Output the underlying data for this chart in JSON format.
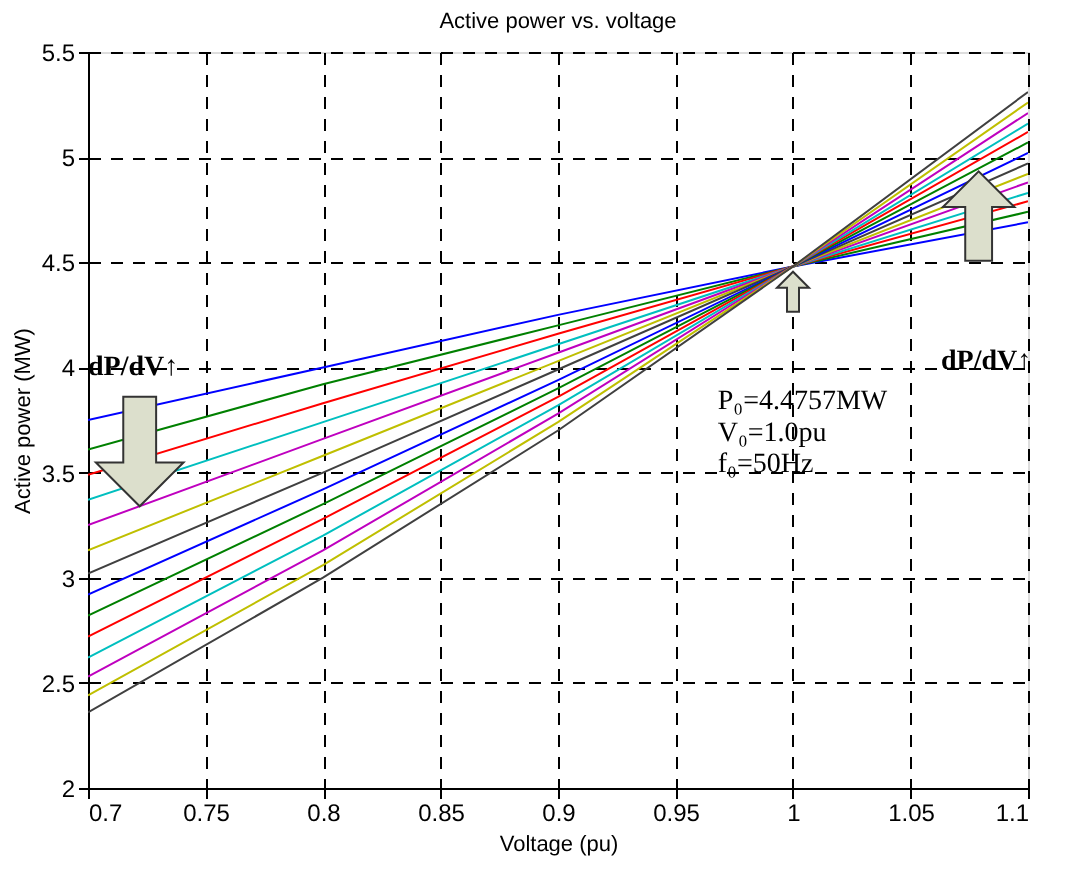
{
  "chart_data": {
    "type": "line",
    "title": "Active power vs. voltage",
    "xlabel": "Voltage (pu)",
    "ylabel": "Active power (MW)",
    "x": [
      0.7,
      0.8,
      0.9,
      1.0,
      1.1
    ],
    "series": [
      {
        "color": "#0000ff",
        "values": [
          3.75,
          4.0,
          4.25,
          4.48,
          4.69
        ]
      },
      {
        "color": "#008000",
        "values": [
          3.61,
          3.92,
          4.2,
          4.48,
          4.74
        ]
      },
      {
        "color": "#ff0000",
        "values": [
          3.49,
          3.83,
          4.16,
          4.48,
          4.79
        ]
      },
      {
        "color": "#00bfbf",
        "values": [
          3.37,
          3.74,
          4.11,
          4.48,
          4.83
        ]
      },
      {
        "color": "#bf00bf",
        "values": [
          3.25,
          3.66,
          4.07,
          4.48,
          4.88
        ]
      },
      {
        "color": "#bfbf00",
        "values": [
          3.13,
          3.58,
          4.03,
          4.48,
          4.92
        ]
      },
      {
        "color": "#404040",
        "values": [
          3.02,
          3.5,
          3.99,
          4.48,
          4.97
        ]
      },
      {
        "color": "#0000ff",
        "values": [
          2.92,
          3.42,
          3.94,
          4.48,
          5.02
        ]
      },
      {
        "color": "#008000",
        "values": [
          2.82,
          3.35,
          3.9,
          4.48,
          5.07
        ]
      },
      {
        "color": "#ff0000",
        "values": [
          2.72,
          3.28,
          3.86,
          4.48,
          5.12
        ]
      },
      {
        "color": "#00bfbf",
        "values": [
          2.62,
          3.2,
          3.82,
          4.48,
          5.16
        ]
      },
      {
        "color": "#bf00bf",
        "values": [
          2.53,
          3.13,
          3.78,
          4.48,
          5.21
        ]
      },
      {
        "color": "#bfbf00",
        "values": [
          2.44,
          3.06,
          3.74,
          4.48,
          5.26
        ]
      },
      {
        "color": "#404040",
        "values": [
          2.36,
          3.0,
          3.7,
          4.48,
          5.31
        ]
      }
    ],
    "xlim": [
      0.7,
      1.1
    ],
    "xticks": [
      0.7,
      0.75,
      0.8,
      0.85,
      0.9,
      0.95,
      1,
      1.05,
      1.1
    ],
    "ylim": [
      2,
      5.5
    ],
    "yticks": [
      2,
      2.5,
      3,
      3.5,
      4,
      4.5,
      5,
      5.5
    ],
    "grid": true,
    "line_style": "solid",
    "marker": "none",
    "annotations": [
      "dP/dV↑",
      "dP/dV↑",
      "P₀=4.4757MW",
      "V₀=1.0pu",
      "f₀=50Hz"
    ]
  }
}
